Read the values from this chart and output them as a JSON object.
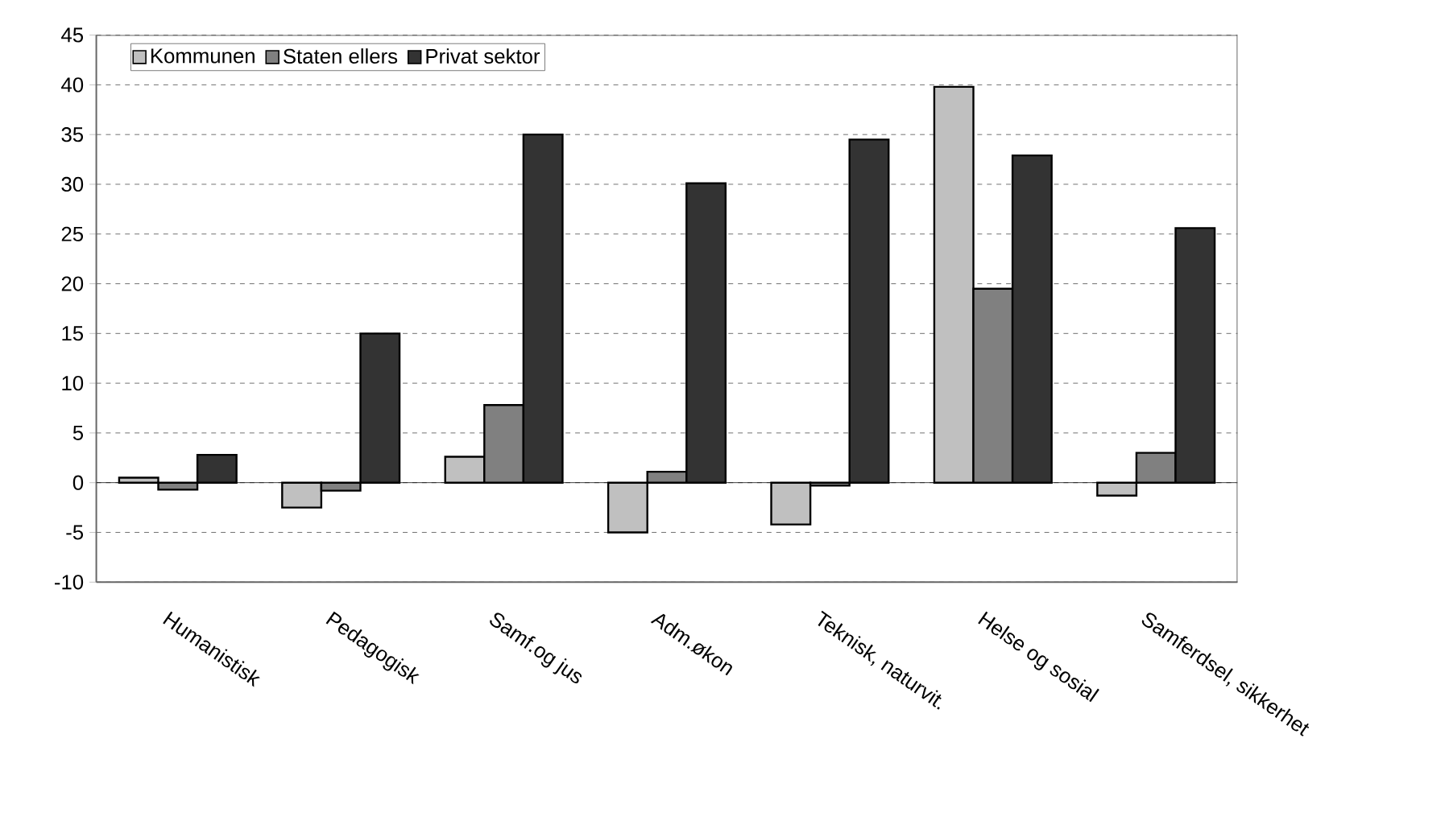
{
  "chart_data": {
    "type": "bar",
    "categories": [
      "Humanistisk",
      "Pedagogisk",
      "Samf.og jus",
      "Adm.økon",
      "Teknisk, naturvit.",
      "Helse og sosial",
      "Samferdsel, sikkerhet"
    ],
    "series": [
      {
        "name": "Kommunen",
        "color": "#c0c0c0",
        "values": [
          0.5,
          -2.5,
          2.6,
          -5,
          -4.2,
          39.8,
          -1.3
        ]
      },
      {
        "name": "Staten ellers",
        "color": "#808080",
        "values": [
          -0.7,
          -0.8,
          7.8,
          1.1,
          -0.3,
          19.5,
          3.0
        ]
      },
      {
        "name": "Privat sektor",
        "color": "#333333",
        "values": [
          2.8,
          15,
          35,
          30.1,
          34.5,
          32.9,
          25.6
        ]
      }
    ],
    "ylim": [
      -10,
      45
    ],
    "yticks": [
      -10,
      -5,
      0,
      5,
      10,
      15,
      20,
      25,
      30,
      35,
      40,
      45
    ],
    "grid": "y",
    "legend": "top left"
  }
}
